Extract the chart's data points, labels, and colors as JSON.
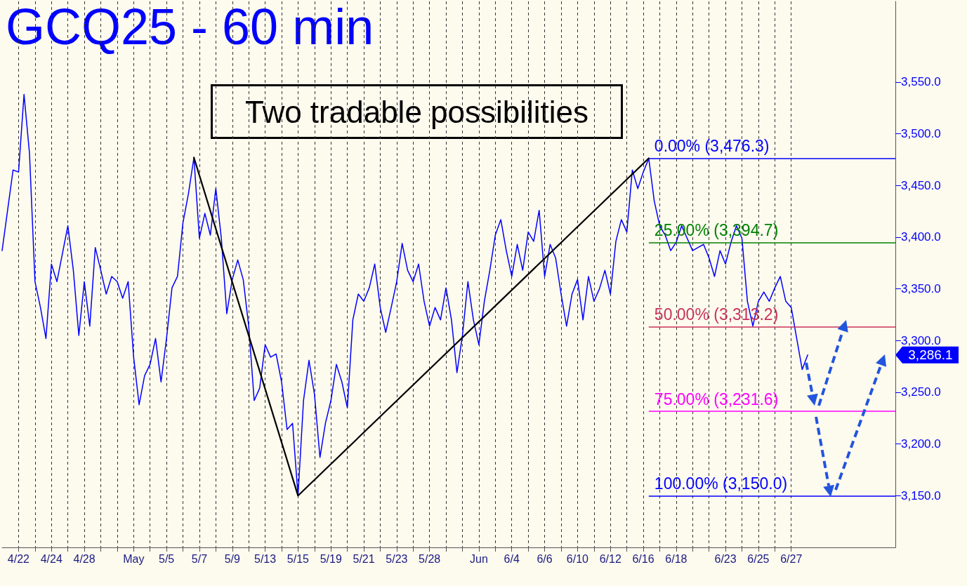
{
  "chart_data": {
    "type": "line",
    "title": "GCQ25 - 60 min",
    "annotations": [
      "Two tradable possibilities",
      "3,286.1"
    ],
    "categories": [
      null,
      null,
      null,
      "4/22",
      null,
      null,
      null,
      null,
      null,
      "4/24",
      null,
      null,
      null,
      null,
      null,
      "4/28",
      null,
      null,
      null,
      null,
      null,
      null,
      null,
      null,
      "May",
      null,
      null,
      null,
      null,
      null,
      "5/5",
      null,
      null,
      null,
      null,
      null,
      "5/7",
      null,
      null,
      null,
      null,
      null,
      "5/9",
      null,
      null,
      null,
      null,
      null,
      "5/13",
      null,
      null,
      null,
      null,
      null,
      "5/15",
      null,
      null,
      null,
      null,
      null,
      "5/19",
      null,
      null,
      null,
      null,
      null,
      "5/21",
      null,
      null,
      null,
      null,
      null,
      "5/23",
      null,
      null,
      null,
      null,
      null,
      "5/28",
      null,
      null,
      null,
      null,
      null,
      null,
      null,
      null,
      "Jun",
      null,
      null,
      null,
      null,
      null,
      "6/4",
      null,
      null,
      null,
      null,
      null,
      "6/6",
      null,
      null,
      null,
      null,
      null,
      "6/10",
      null,
      null,
      null,
      null,
      null,
      "6/12",
      null,
      null,
      null,
      null,
      null,
      "6/16",
      null,
      null,
      null,
      null,
      null,
      "6/18",
      null,
      null,
      null,
      null,
      null,
      null,
      null,
      null,
      "6/23",
      null,
      null,
      null,
      null,
      null,
      "6/25",
      null,
      null,
      null,
      null,
      null,
      "6/27",
      null,
      null,
      null,
      null,
      null,
      null,
      null,
      null,
      null,
      null,
      null,
      null,
      null,
      null,
      null,
      null,
      null,
      null,
      null
    ],
    "series": [
      {
        "color": "#0000ff",
        "values": [
          3387,
          3426,
          3465,
          3463,
          3538,
          3481,
          3357,
          3332,
          3302,
          3374,
          3357,
          3384,
          3411,
          3368,
          3305,
          3357,
          3314,
          3390,
          3368,
          3345,
          3362,
          3357,
          3341,
          3357,
          3284,
          3238,
          3266,
          3277,
          3302,
          3260,
          3302,
          3351,
          3362,
          3414,
          3442,
          3477,
          3399,
          3423,
          3402,
          3447,
          3399,
          3326,
          3359,
          3378,
          3359,
          3314,
          3242,
          3254,
          3296,
          3284,
          3287,
          3260,
          3214,
          3220,
          3150,
          3242,
          3281,
          3248,
          3187,
          3220,
          3242,
          3277,
          3260,
          3235,
          3320,
          3345,
          3338,
          3351,
          3374,
          3332,
          3308,
          3332,
          3357,
          3394,
          3368,
          3357,
          3374,
          3338,
          3314,
          3332,
          3320,
          3351,
          3320,
          3269,
          3305,
          3357,
          3320,
          3296,
          3338,
          3368,
          3402,
          3417,
          3387,
          3362,
          3393,
          3368,
          3405,
          3396,
          3426,
          3362,
          3393,
          3380,
          3345,
          3314,
          3345,
          3359,
          3320,
          3362,
          3338,
          3350,
          3368,
          3345,
          3396,
          3417,
          3405,
          3465,
          3447,
          3463,
          3476,
          3435,
          3411,
          3402,
          3387,
          3395,
          3411,
          3399,
          3387,
          3390,
          3393,
          3380,
          3362,
          3387,
          3374,
          3395,
          3411,
          3399,
          3338,
          3314,
          3338,
          3347,
          3338,
          3351,
          3362,
          3338,
          3332,
          3302,
          3272,
          3286.1,
          null,
          null,
          null,
          null,
          null,
          null,
          null,
          null,
          null,
          null,
          null,
          null,
          null,
          null,
          null,
          null
        ]
      },
      {
        "color": "#000000",
        "values": [
          null,
          null,
          null,
          null,
          null,
          null,
          null,
          null,
          null,
          null,
          null,
          null,
          null,
          null,
          null,
          null,
          null,
          null,
          null,
          null,
          null,
          null,
          null,
          null,
          null,
          null,
          null,
          null,
          null,
          null,
          null,
          null,
          null,
          null,
          null,
          3477,
          null,
          null,
          null,
          null,
          null,
          null,
          null,
          null,
          null,
          null,
          null,
          null,
          null,
          null,
          null,
          null,
          null,
          null,
          3150,
          null,
          null,
          null,
          null,
          null,
          null,
          null,
          null,
          null,
          null,
          null,
          null,
          null,
          null,
          null,
          null,
          null,
          null,
          null,
          null,
          null,
          null,
          null,
          null,
          null,
          null,
          null,
          null,
          null,
          null,
          null,
          null,
          null,
          null,
          null,
          null,
          null,
          null,
          null,
          null,
          null,
          null,
          null,
          null,
          null,
          null,
          null,
          null,
          null,
          null,
          null,
          null,
          null,
          null,
          null,
          null,
          null,
          null,
          null,
          null,
          null,
          null,
          null,
          3476.3,
          null,
          null,
          null,
          null,
          null,
          null,
          null,
          null,
          null,
          null,
          null,
          null,
          null,
          null,
          null,
          null,
          null,
          null,
          null,
          null,
          null,
          null,
          null,
          null,
          null,
          null,
          null,
          null,
          null,
          null,
          null,
          null,
          null,
          null,
          null,
          null,
          null,
          null,
          null,
          null,
          null,
          null,
          null,
          null,
          null
        ]
      }
    ],
    "ylim": [
      3100,
      3628
    ],
    "yticks": [
      {
        "value": 3150,
        "label": "3,150.0"
      },
      {
        "value": 3200,
        "label": "3,200.0"
      },
      {
        "value": 3250,
        "label": "3,250.0"
      },
      {
        "value": 3300,
        "label": "3,300.0"
      },
      {
        "value": 3350,
        "label": "3,350.0"
      },
      {
        "value": 3400,
        "label": "3,400.0"
      },
      {
        "value": 3450,
        "label": "3,450.0"
      },
      {
        "value": 3500,
        "label": "3,500.0"
      },
      {
        "value": 3550,
        "label": "3,550.0"
      }
    ],
    "ref_lines": [
      {
        "axis": "y",
        "value": 3476.3,
        "label": "0.00% (3,476.3)",
        "color": "#0000ff"
      },
      {
        "axis": "y",
        "value": 3394.7,
        "label": "25.00% (3,394.7)",
        "color": "#008000"
      },
      {
        "axis": "y",
        "value": 3313.2,
        "label": "50.00% (3,313.2)",
        "color": "#c8325a"
      },
      {
        "axis": "y",
        "value": 3231.6,
        "label": "75.00% (3,231.6)",
        "color": "#ff00ff"
      },
      {
        "axis": "y",
        "value": 3150.0,
        "label": "100.00% (3,150.0)",
        "color": "#0000ff"
      }
    ],
    "grid": "x",
    "marker": "none",
    "line_style": "solid"
  }
}
